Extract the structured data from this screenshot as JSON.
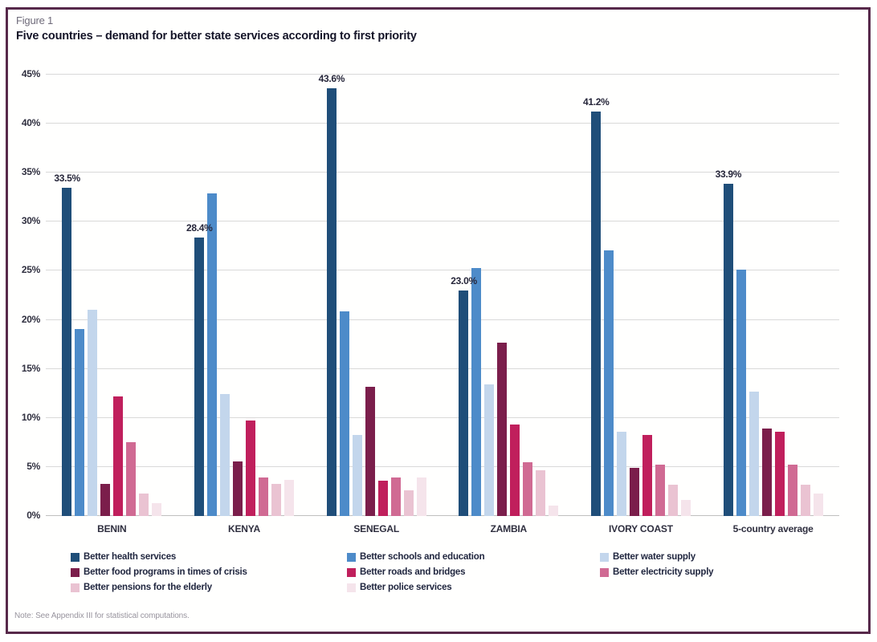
{
  "figure": {
    "label": "Figure 1",
    "title": "Five countries – demand for better state services according to first priority"
  },
  "note": "Note: See Appendix III for statistical computations.",
  "colors": {
    "frame_border": "#57294B",
    "gridline": "#D9D9D9",
    "figure_label_text": "#6F6B7A",
    "title_text": "#141428",
    "axis_text": "#2F2F3F",
    "legend_text": "#20263F",
    "note_text": "#98949E"
  },
  "chart_data": {
    "type": "bar",
    "title": "Five countries – demand for better state services according to first priority",
    "categories": [
      "BENIN",
      "KENYA",
      "SENEGAL",
      "ZAMBIA",
      "IVORY COAST",
      "5-country average"
    ],
    "series": [
      {
        "name": "Better health services",
        "color": "#1F4E79",
        "values": [
          33.5,
          28.4,
          43.6,
          23.0,
          41.2,
          33.9
        ]
      },
      {
        "name": "Better schools and education",
        "color": "#4D8BC9",
        "values": [
          19.1,
          32.9,
          20.9,
          25.3,
          27.1,
          25.1
        ]
      },
      {
        "name": "Better water supply",
        "color": "#C3D6EC",
        "values": [
          21.0,
          12.4,
          8.3,
          13.4,
          8.6,
          12.7
        ]
      },
      {
        "name": "Better food programs in times of crisis",
        "color": "#7B1E4B",
        "values": [
          3.3,
          5.6,
          13.2,
          17.7,
          4.9,
          8.9
        ]
      },
      {
        "name": "Better roads and bridges",
        "color": "#C01F5C",
        "values": [
          12.2,
          9.7,
          3.6,
          9.3,
          8.3,
          8.6
        ]
      },
      {
        "name": "Better electricity supply",
        "color": "#D06A93",
        "values": [
          7.5,
          3.9,
          3.9,
          5.5,
          5.2,
          5.2
        ]
      },
      {
        "name": "Better pensions for the elderly",
        "color": "#EAC3D2",
        "values": [
          2.3,
          3.3,
          2.6,
          4.7,
          3.2,
          3.2
        ]
      },
      {
        "name": "Better police services",
        "color": "#F5E4EB",
        "values": [
          1.3,
          3.7,
          3.9,
          1.1,
          1.6,
          2.3
        ]
      }
    ],
    "value_labels": {
      "series": "Better health services",
      "values": [
        "33.5%",
        "28.4%",
        "43.6%",
        "23.0%",
        "41.2%",
        "33.9%"
      ]
    },
    "ylim": [
      0,
      45
    ],
    "ytick_step": 5,
    "ytick_labels": [
      "0%",
      "5%",
      "10%",
      "15%",
      "20%",
      "25%",
      "30%",
      "35%",
      "40%",
      "45%"
    ],
    "grid": true,
    "legend_position": "bottom"
  }
}
